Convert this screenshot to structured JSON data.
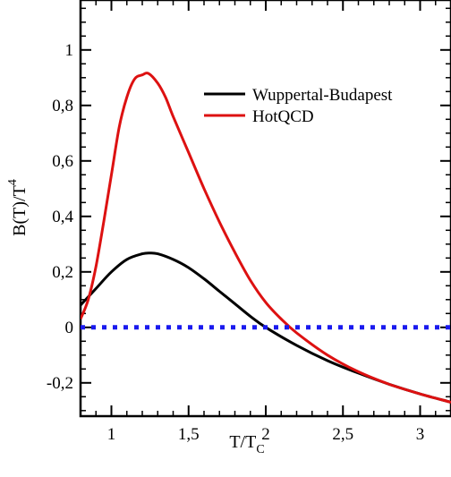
{
  "chart_data": {
    "type": "line",
    "title": "",
    "xlabel": "T/T",
    "xlabel_sub": "C",
    "ylabel": "B(T)/T",
    "ylabel_sup": "4",
    "xlim": [
      0.8,
      3.2
    ],
    "ylim": [
      -0.32,
      1.18
    ],
    "x_ticks": [
      1,
      1.5,
      2,
      2.5,
      3
    ],
    "x_tick_labels": [
      "1",
      "1,5",
      "2",
      "2,5",
      "3"
    ],
    "y_ticks": [
      -0.2,
      0,
      0.2,
      0.4,
      0.6,
      0.8,
      1
    ],
    "y_tick_labels": [
      "-0,2",
      "0",
      "0,2",
      "0,4",
      "0,6",
      "0,8",
      "1"
    ],
    "grid": false,
    "legend_position": "top-right",
    "series": [
      {
        "name": "Wuppertal-Budapest",
        "color": "#000000",
        "x": [
          0.8,
          0.9,
          1.0,
          1.1,
          1.2,
          1.25,
          1.3,
          1.4,
          1.5,
          1.6,
          1.7,
          1.8,
          1.9,
          2.0,
          2.2,
          2.4,
          2.6,
          2.8,
          3.0,
          3.2
        ],
        "y": [
          0.08,
          0.14,
          0.2,
          0.245,
          0.265,
          0.268,
          0.265,
          0.245,
          0.215,
          0.175,
          0.13,
          0.085,
          0.04,
          0.0,
          -0.065,
          -0.12,
          -0.165,
          -0.205,
          -0.24,
          -0.27
        ]
      },
      {
        "name": "HotQCD",
        "color": "#dd1111",
        "x": [
          0.8,
          0.85,
          0.9,
          0.95,
          1.0,
          1.05,
          1.1,
          1.15,
          1.2,
          1.24,
          1.3,
          1.35,
          1.4,
          1.5,
          1.6,
          1.7,
          1.8,
          1.9,
          2.0,
          2.1,
          2.2,
          2.4,
          2.6,
          2.8,
          3.0,
          3.2
        ],
        "y": [
          0.03,
          0.1,
          0.22,
          0.38,
          0.55,
          0.72,
          0.83,
          0.895,
          0.91,
          0.915,
          0.88,
          0.83,
          0.76,
          0.63,
          0.5,
          0.38,
          0.27,
          0.17,
          0.09,
          0.03,
          -0.02,
          -0.1,
          -0.16,
          -0.205,
          -0.24,
          -0.27
        ]
      },
      {
        "name": "zero-line",
        "color": "#1a1aee",
        "x": [
          0.8,
          3.2
        ],
        "y": [
          0,
          0
        ]
      }
    ]
  }
}
